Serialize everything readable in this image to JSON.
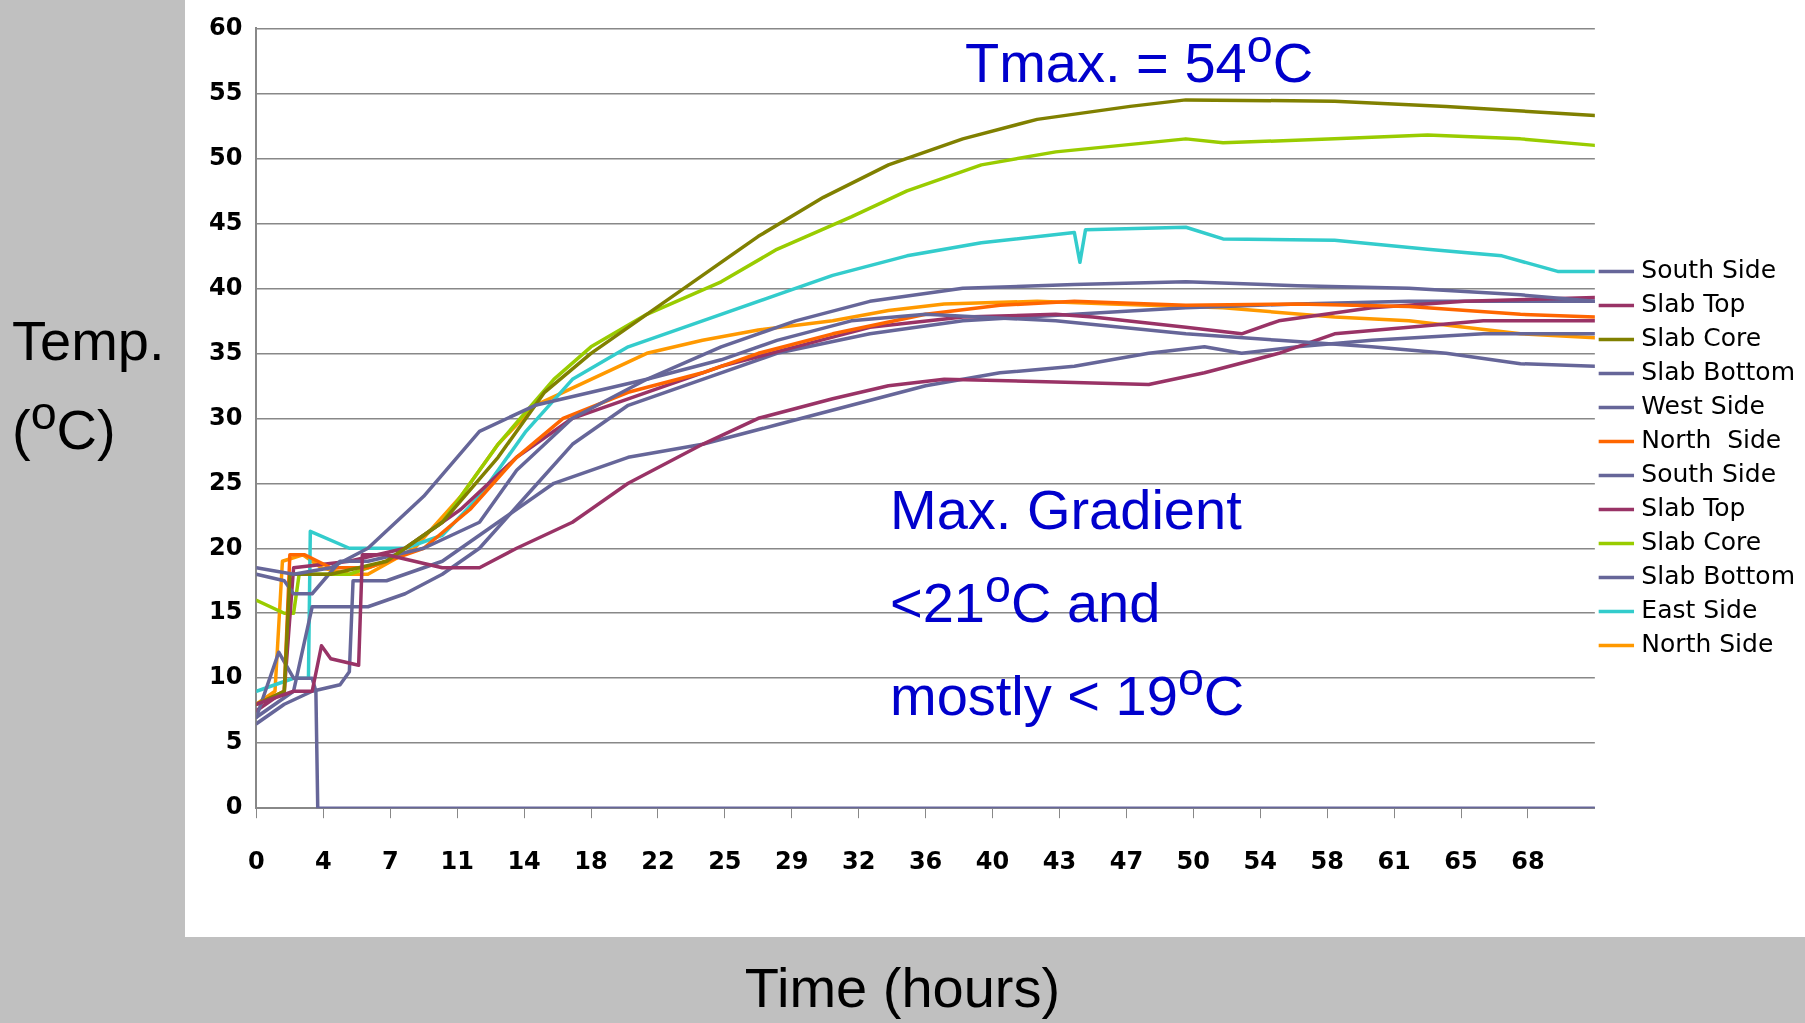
{
  "chart_data": {
    "type": "line",
    "xlabel": "Time (hours)",
    "ylabel": "Temp. ($^{o}$C)",
    "annotations": [
      "Tmax. = 54$^{o}$C",
      "Max. Gradient <21$^{o}$C and mostly < 19$^{o}$C"
    ],
    "xlim": [
      0,
      72
    ],
    "xticks": [
      {
        "value": 0,
        "label": "0"
      },
      {
        "value": 3.6,
        "label": "4"
      },
      {
        "value": 7.2,
        "label": "7"
      },
      {
        "value": 10.8,
        "label": "11"
      },
      {
        "value": 14.4,
        "label": "14"
      },
      {
        "value": 18,
        "label": "18"
      },
      {
        "value": 21.6,
        "label": "22"
      },
      {
        "value": 25.2,
        "label": "25"
      },
      {
        "value": 28.8,
        "label": "29"
      },
      {
        "value": 32.4,
        "label": "32"
      },
      {
        "value": 36,
        "label": "36"
      },
      {
        "value": 39.6,
        "label": "40"
      },
      {
        "value": 43.2,
        "label": "43"
      },
      {
        "value": 46.8,
        "label": "47"
      },
      {
        "value": 50.4,
        "label": "50"
      },
      {
        "value": 54,
        "label": "54"
      },
      {
        "value": 57.6,
        "label": "58"
      },
      {
        "value": 61.2,
        "label": "61"
      },
      {
        "value": 64.8,
        "label": "65"
      },
      {
        "value": 68.4,
        "label": "68"
      }
    ],
    "ylim": [
      0,
      60
    ],
    "yticks": [
      0,
      5,
      10,
      15,
      20,
      25,
      30,
      35,
      40,
      45,
      50,
      55,
      60
    ],
    "grid": "y",
    "legend": "right",
    "marker": "none",
    "line_style": "solid",
    "series": [
      {
        "name": "South Side",
        "color": "#666699",
        "x": [
          0,
          2,
          4,
          6,
          9,
          12,
          15,
          18,
          21,
          25,
          28,
          32,
          36,
          43,
          50,
          55,
          60,
          64,
          68,
          72
        ],
        "values": [
          18.5,
          18,
          18.5,
          20,
          24,
          29,
          31,
          32,
          33,
          34.5,
          36,
          37.5,
          38,
          37.5,
          36.5,
          36,
          35.5,
          35,
          34.2,
          34
        ]
      },
      {
        "name": "Slab Top",
        "color": "#993366",
        "x": [
          0,
          2,
          3,
          3.5,
          4,
          5.5,
          5.7,
          7,
          10,
          12,
          14,
          17,
          20,
          24,
          27,
          31,
          34,
          37,
          43,
          48,
          51,
          55,
          58,
          62,
          66,
          72
        ],
        "values": [
          8,
          9,
          9,
          12.5,
          11.5,
          11,
          19.5,
          19.5,
          18.5,
          18.5,
          20,
          22,
          25,
          28,
          30,
          31.5,
          32.5,
          33,
          32.8,
          32.6,
          33.5,
          35,
          36.5,
          37,
          37.5,
          37.5
        ]
      },
      {
        "name": "Slab Core",
        "color": "#808000",
        "x": [
          0,
          1.5,
          1.8,
          4,
          7,
          10,
          13,
          15.5,
          18,
          21,
          24,
          27,
          30.5,
          34,
          38,
          42,
          47,
          50,
          58,
          64,
          72
        ],
        "values": [
          8,
          9,
          18,
          18,
          19,
          22,
          27,
          32,
          35,
          38,
          41,
          44,
          47,
          49.5,
          51.5,
          53,
          54,
          54.5,
          54.4,
          54,
          53.3
        ]
      },
      {
        "name": "Slab Bottom",
        "color": "#666699",
        "x": [
          0,
          1.5,
          3,
          4.5,
          5,
          5.2,
          7,
          10,
          13,
          16,
          20,
          24,
          28,
          32,
          36,
          40,
          44,
          48,
          51,
          53,
          56,
          60,
          66,
          72
        ],
        "values": [
          6.5,
          8,
          9,
          9.5,
          10.5,
          17.5,
          17.5,
          19,
          22,
          25,
          27,
          28,
          29.5,
          31,
          32.5,
          33.5,
          34,
          35,
          35.5,
          35,
          35.5,
          36,
          36.5,
          36.5
        ]
      },
      {
        "name": "West Side",
        "color": "#666699",
        "x": [
          0,
          1.5,
          2,
          3,
          4.5,
          6,
          9,
          12,
          14,
          17,
          21,
          25,
          29,
          33,
          38,
          44,
          50,
          56,
          62,
          68,
          72
        ],
        "values": [
          18,
          17.5,
          16.5,
          16.5,
          19,
          19,
          20,
          22,
          26,
          30,
          33,
          35.5,
          37.5,
          39,
          40,
          40.3,
          40.5,
          40.2,
          40,
          39.5,
          39
        ]
      },
      {
        "name": "North  Side",
        "color": "#ff6600",
        "x": [
          0,
          1.5,
          1.8,
          2.6,
          4,
          6,
          9,
          11.5,
          14,
          16.5,
          20,
          24,
          27,
          31,
          36,
          40,
          44,
          50,
          56,
          62,
          68,
          72
        ],
        "values": [
          8,
          9,
          19.5,
          19.5,
          18.5,
          18.5,
          20,
          23,
          27,
          30,
          32,
          33.5,
          35,
          36.5,
          38,
          38.7,
          39,
          38.7,
          38.8,
          38.6,
          38,
          37.8
        ]
      },
      {
        "name": "South Side",
        "color": "#666699",
        "x": [
          0,
          1.2,
          2,
          3,
          3.2,
          3.3,
          72
        ],
        "values": [
          7,
          12,
          10,
          10,
          9,
          0,
          0
        ]
      },
      {
        "name": "Slab Top",
        "color": "#993366",
        "x": [
          0,
          1.5,
          2,
          5,
          8,
          11,
          14,
          17,
          21,
          25,
          29,
          33,
          38,
          43,
          45,
          50,
          53,
          55,
          60,
          65,
          72
        ],
        "values": [
          7.5,
          9,
          18.5,
          19,
          20,
          23,
          27,
          30,
          32,
          34,
          35.5,
          37,
          37.8,
          38,
          37.8,
          37,
          36.5,
          37.5,
          38.5,
          39,
          39.3
        ]
      },
      {
        "name": "Slab Core",
        "color": "#99cc00",
        "x": [
          0,
          1.5,
          2,
          2.3,
          5,
          7,
          10,
          13,
          16,
          18,
          21,
          25,
          28,
          32,
          35,
          39,
          43,
          50,
          52,
          58,
          63,
          68,
          72
        ],
        "values": [
          16,
          15,
          15,
          18,
          18,
          19,
          22,
          28,
          33,
          35.5,
          38,
          40.5,
          43,
          45.5,
          47.5,
          49.5,
          50.5,
          51.5,
          51.2,
          51.5,
          51.8,
          51.5,
          51
        ]
      },
      {
        "name": "Slab Bottom",
        "color": "#666699",
        "x": [
          0,
          2,
          3,
          6,
          8,
          10,
          12,
          14.5,
          17,
          20,
          24,
          28,
          33,
          38,
          44,
          50,
          56,
          62,
          68,
          72
        ],
        "values": [
          7,
          9,
          15.5,
          15.5,
          16.5,
          18,
          20,
          24,
          28,
          31,
          33,
          35,
          36.5,
          37.5,
          38,
          38.5,
          38.8,
          39,
          39,
          39
        ]
      },
      {
        "name": "East Side",
        "color": "#33cccc",
        "x": [
          0,
          2,
          2.8,
          2.9,
          5,
          8,
          10,
          12,
          14.5,
          17,
          20,
          24,
          28,
          31,
          35,
          39,
          44,
          44.3,
          44.6,
          50,
          52,
          58,
          63,
          67,
          70,
          72
        ],
        "values": [
          9,
          10,
          10,
          21.3,
          20,
          20,
          21,
          24,
          29,
          33,
          35.5,
          37.5,
          39.5,
          41,
          42.5,
          43.5,
          44.3,
          42,
          44.5,
          44.7,
          43.8,
          43.7,
          43,
          42.5,
          41.3,
          41.3
        ]
      },
      {
        "name": "North Side",
        "color": "#ff9900",
        "x": [
          0,
          1,
          1.4,
          2.5,
          3.5,
          5,
          6,
          8.5,
          11,
          13,
          15,
          18,
          21,
          24,
          27,
          31,
          34,
          37,
          42,
          46,
          52,
          58,
          62,
          68,
          72
        ],
        "values": [
          8,
          9,
          19,
          19.5,
          18.5,
          18,
          18,
          20,
          24,
          28,
          31,
          33,
          35,
          36,
          36.8,
          37.5,
          38.3,
          38.8,
          39,
          38.8,
          38.5,
          37.8,
          37.5,
          36.5,
          36.2
        ]
      }
    ]
  }
}
